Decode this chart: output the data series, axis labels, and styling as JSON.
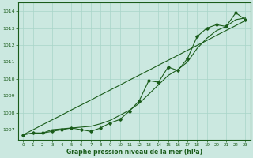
{
  "xlabel": "Graphe pression niveau de la mer (hPa)",
  "bg_color": "#cbe8e0",
  "grid_color": "#a8d5c8",
  "line_color": "#1a5c1a",
  "marker": "D",
  "markersize": 1.8,
  "linewidth": 0.8,
  "ylim": [
    1006.4,
    1014.5
  ],
  "xlim": [
    -0.5,
    23.5
  ],
  "yticks": [
    1007,
    1008,
    1009,
    1010,
    1011,
    1012,
    1013,
    1014
  ],
  "xticks": [
    0,
    1,
    2,
    3,
    4,
    5,
    6,
    7,
    8,
    9,
    10,
    11,
    12,
    13,
    14,
    15,
    16,
    17,
    18,
    19,
    20,
    21,
    22,
    23
  ],
  "series_main": [
    1006.7,
    1006.8,
    1006.8,
    1006.9,
    1007.0,
    1007.1,
    1007.0,
    1006.9,
    1007.1,
    1007.4,
    1007.6,
    1008.1,
    1008.7,
    1009.9,
    1009.8,
    1010.7,
    1010.5,
    1011.2,
    1012.5,
    1013.0,
    1013.2,
    1013.1,
    1013.9,
    1013.5
  ],
  "series_smooth": [
    1006.7,
    1006.8,
    1006.8,
    1007.0,
    1007.05,
    1007.1,
    1007.15,
    1007.2,
    1007.35,
    1007.55,
    1007.85,
    1008.15,
    1008.55,
    1009.1,
    1009.65,
    1010.2,
    1010.55,
    1011.0,
    1011.8,
    1012.4,
    1012.85,
    1013.1,
    1013.5,
    1013.6
  ],
  "series_linear": [
    1006.7,
    1006.99,
    1007.29,
    1007.58,
    1007.87,
    1008.17,
    1008.46,
    1008.75,
    1009.05,
    1009.34,
    1009.63,
    1009.93,
    1010.22,
    1010.51,
    1010.81,
    1011.1,
    1011.39,
    1011.69,
    1011.98,
    1012.27,
    1012.57,
    1012.86,
    1013.15,
    1013.45
  ]
}
